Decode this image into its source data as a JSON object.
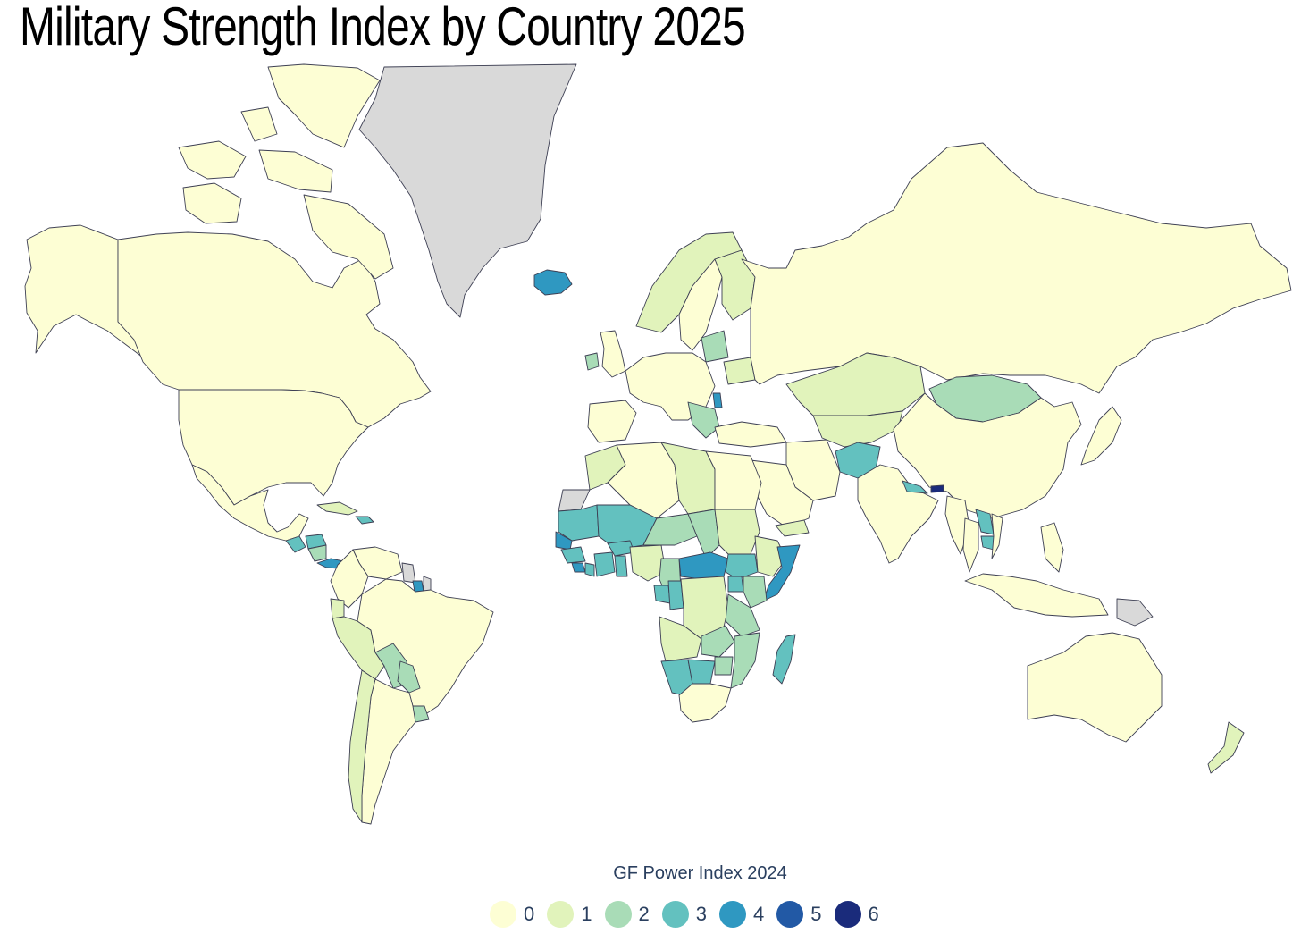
{
  "title": "Military Strength Index by Country 2025",
  "legend": {
    "title": "GF Power Index 2024",
    "items": [
      {
        "label": "0",
        "color": "#fdfed4"
      },
      {
        "label": "1",
        "color": "#e1f3bb"
      },
      {
        "label": "2",
        "color": "#a9dcb7"
      },
      {
        "label": "3",
        "color": "#63c1bf"
      },
      {
        "label": "4",
        "color": "#2f98c1"
      },
      {
        "label": "5",
        "color": "#2259a5"
      },
      {
        "label": "6",
        "color": "#1a2b7b"
      }
    ]
  },
  "no_data_color": "#d9d9d9",
  "countries": [
    {
      "name": "Canada",
      "index": 0
    },
    {
      "name": "United States",
      "index": 0
    },
    {
      "name": "Alaska",
      "index": 0
    },
    {
      "name": "Greenland",
      "index": null
    },
    {
      "name": "Iceland",
      "index": 4
    },
    {
      "name": "Mexico",
      "index": 0
    },
    {
      "name": "Guatemala",
      "index": 3
    },
    {
      "name": "Honduras",
      "index": 3
    },
    {
      "name": "Nicaragua",
      "index": 2
    },
    {
      "name": "Panama",
      "index": 4
    },
    {
      "name": "Cuba",
      "index": 1
    },
    {
      "name": "Dominican Republic",
      "index": 3
    },
    {
      "name": "Venezuela",
      "index": 0
    },
    {
      "name": "Colombia",
      "index": 0
    },
    {
      "name": "Guyana",
      "index": null
    },
    {
      "name": "Suriname",
      "index": 4
    },
    {
      "name": "French Guiana",
      "index": null
    },
    {
      "name": "Ecuador",
      "index": 1
    },
    {
      "name": "Peru",
      "index": 1
    },
    {
      "name": "Brazil",
      "index": 0
    },
    {
      "name": "Bolivia",
      "index": 2
    },
    {
      "name": "Paraguay",
      "index": 2
    },
    {
      "name": "Uruguay",
      "index": 2
    },
    {
      "name": "Argentina",
      "index": 0
    },
    {
      "name": "Chile",
      "index": 1
    },
    {
      "name": "Ireland",
      "index": 2
    },
    {
      "name": "United Kingdom",
      "index": 0
    },
    {
      "name": "Norway",
      "index": 1
    },
    {
      "name": "Sweden",
      "index": 0
    },
    {
      "name": "Finland",
      "index": 1
    },
    {
      "name": "Baltic States",
      "index": 2
    },
    {
      "name": "Belarus",
      "index": 1
    },
    {
      "name": "Moldova",
      "index": 4
    },
    {
      "name": "Balkans",
      "index": 2
    },
    {
      "name": "Western Europe",
      "index": 0
    },
    {
      "name": "Spain",
      "index": 0
    },
    {
      "name": "Russia",
      "index": 0
    },
    {
      "name": "Kazakhstan",
      "index": 1
    },
    {
      "name": "Central Asia",
      "index": 1
    },
    {
      "name": "Mongolia",
      "index": 2
    },
    {
      "name": "China",
      "index": 0
    },
    {
      "name": "Afghanistan",
      "index": 3
    },
    {
      "name": "Iran",
      "index": 0
    },
    {
      "name": "Turkey",
      "index": 0
    },
    {
      "name": "Saudi Arabia",
      "index": 0
    },
    {
      "name": "Yemen",
      "index": 1
    },
    {
      "name": "India",
      "index": 0
    },
    {
      "name": "Nepal",
      "index": 3
    },
    {
      "name": "Bhutan",
      "index": 6
    },
    {
      "name": "Myanmar",
      "index": 0
    },
    {
      "name": "Thailand",
      "index": 0
    },
    {
      "name": "Laos",
      "index": 3
    },
    {
      "name": "Cambodia",
      "index": 3
    },
    {
      "name": "Vietnam",
      "index": 0
    },
    {
      "name": "Japan",
      "index": 0
    },
    {
      "name": "Philippines",
      "index": 0
    },
    {
      "name": "Indonesia",
      "index": 0
    },
    {
      "name": "Papua New Guinea",
      "index": null
    },
    {
      "name": "Australia",
      "index": 0
    },
    {
      "name": "New Zealand",
      "index": 1
    },
    {
      "name": "Morocco",
      "index": 1
    },
    {
      "name": "Western Sahara",
      "index": null
    },
    {
      "name": "Algeria",
      "index": 0
    },
    {
      "name": "Libya",
      "index": 1
    },
    {
      "name": "Egypt",
      "index": 0
    },
    {
      "name": "Mauritania",
      "index": 3
    },
    {
      "name": "Mali",
      "index": 3
    },
    {
      "name": "Niger",
      "index": 2
    },
    {
      "name": "Chad",
      "index": 2
    },
    {
      "name": "Sudan",
      "index": 1
    },
    {
      "name": "Senegal",
      "index": 4
    },
    {
      "name": "Guinea",
      "index": 3
    },
    {
      "name": "Sierra Leone",
      "index": 4
    },
    {
      "name": "Liberia",
      "index": 3
    },
    {
      "name": "Ivory Coast",
      "index": 3
    },
    {
      "name": "Burkina Faso",
      "index": 3
    },
    {
      "name": "Ghana",
      "index": 3
    },
    {
      "name": "Nigeria",
      "index": 1
    },
    {
      "name": "Cameroon",
      "index": 2
    },
    {
      "name": "Central African Republic",
      "index": 4
    },
    {
      "name": "South Sudan",
      "index": 3
    },
    {
      "name": "Ethiopia",
      "index": 1
    },
    {
      "name": "Somalia",
      "index": 4
    },
    {
      "name": "Gabon",
      "index": 3
    },
    {
      "name": "Congo",
      "index": 3
    },
    {
      "name": "DR Congo",
      "index": 1
    },
    {
      "name": "Uganda",
      "index": 3
    },
    {
      "name": "Kenya",
      "index": 2
    },
    {
      "name": "Tanzania",
      "index": 2
    },
    {
      "name": "Angola",
      "index": 1
    },
    {
      "name": "Zambia",
      "index": 2
    },
    {
      "name": "Mozambique",
      "index": 2
    },
    {
      "name": "Namibia",
      "index": 3
    },
    {
      "name": "Botswana",
      "index": 3
    },
    {
      "name": "Zimbabwe",
      "index": 2
    },
    {
      "name": "South Africa",
      "index": 0
    },
    {
      "name": "Madagascar",
      "index": 3
    }
  ]
}
